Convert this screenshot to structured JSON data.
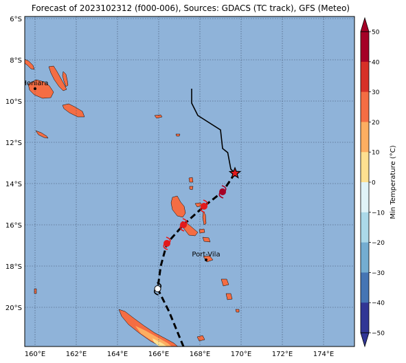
{
  "title": "Forecast of 2023102312 (f000-006), Sources: GDACS (TC track), GFS (Meteo)",
  "map": {
    "lon_range": [
      159.5,
      175.5
    ],
    "lat_range": [
      -21.9,
      -5.9
    ],
    "ocean_color": "#8fb3d9",
    "land_color": "#f46d43",
    "land_warm_color": "#fdae61",
    "land_hot_color": "#fee090",
    "grid": "dotted",
    "lon_ticks": [
      {
        "value": 160,
        "label": "160°E"
      },
      {
        "value": 162,
        "label": "162°E"
      },
      {
        "value": 164,
        "label": "164°E"
      },
      {
        "value": 166,
        "label": "166°E"
      },
      {
        "value": 168,
        "label": "168°E"
      },
      {
        "value": 170,
        "label": "170°E"
      },
      {
        "value": 172,
        "label": "172°E"
      },
      {
        "value": 174,
        "label": "174°E"
      }
    ],
    "lat_ticks": [
      {
        "value": -6,
        "label": "6°S"
      },
      {
        "value": -8,
        "label": "8°S"
      },
      {
        "value": -10,
        "label": "10°S"
      },
      {
        "value": -12,
        "label": "12°S"
      },
      {
        "value": -14,
        "label": "14°S"
      },
      {
        "value": -16,
        "label": "16°S"
      },
      {
        "value": -18,
        "label": "18°S"
      },
      {
        "value": -20,
        "label": "20°S"
      }
    ]
  },
  "cities": [
    {
      "name": "Honiara",
      "lon": 160.0,
      "lat": -9.4
    },
    {
      "name": "Port-Vila",
      "lon": 168.3,
      "lat": -17.7
    }
  ],
  "past_track": [
    [
      167.6,
      -9.4
    ],
    [
      167.6,
      -10.1
    ],
    [
      167.9,
      -10.7
    ],
    [
      169.0,
      -11.4
    ],
    [
      169.1,
      -12.3
    ],
    [
      169.35,
      -12.5
    ],
    [
      169.5,
      -13.3
    ],
    [
      169.7,
      -13.5
    ]
  ],
  "current_position": {
    "lon": 169.7,
    "lat": -13.5,
    "color": "#e31a1c"
  },
  "forecast_track": [
    [
      169.7,
      -13.5
    ],
    [
      169.1,
      -14.4
    ],
    [
      168.2,
      -15.1
    ],
    [
      167.2,
      -16.0
    ],
    [
      166.4,
      -16.9
    ],
    [
      166.1,
      -18.0
    ],
    [
      165.95,
      -19.1
    ],
    [
      166.5,
      -20.2
    ],
    [
      167.2,
      -21.9
    ]
  ],
  "forecast_points": [
    {
      "lon": 169.1,
      "lat": -14.4,
      "color": "#a50026"
    },
    {
      "lon": 168.2,
      "lat": -15.1,
      "color": "#e31a1c"
    },
    {
      "lon": 167.2,
      "lat": -16.0,
      "color": "#e31a1c"
    },
    {
      "lon": 166.4,
      "lat": -16.9,
      "color": "#e31a1c"
    },
    {
      "lon": 165.95,
      "lat": -19.1,
      "color": "#ffffff"
    }
  ],
  "colorbar": {
    "label": "Min Temperature (°C)",
    "ticks": [
      "50",
      "40",
      "30",
      "20",
      "10",
      "0",
      "−10",
      "−20",
      "−30",
      "−40",
      "−50"
    ],
    "colors_top_to_bottom": [
      "#a50026",
      "#d73027",
      "#f46d43",
      "#fdae61",
      "#fee090",
      "#e0f3f8",
      "#abd9e9",
      "#74add1",
      "#4575b4",
      "#313695"
    ]
  }
}
